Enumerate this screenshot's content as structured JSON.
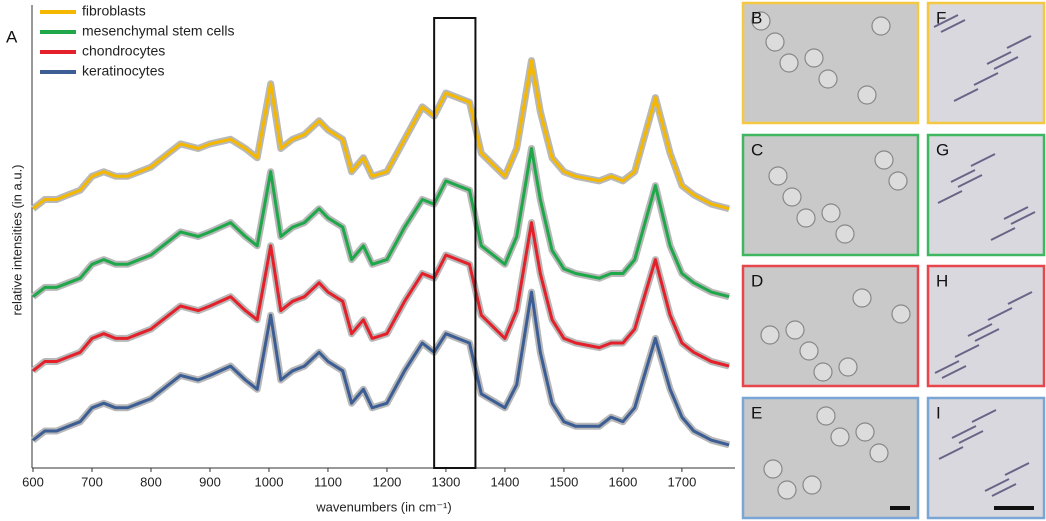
{
  "chart_data": {
    "type": "line",
    "figure_label": "A",
    "x_label": "wavenumbers (in cm⁻¹)",
    "y_label": "relative intensities (in a.u.)",
    "x": [
      600,
      620,
      640,
      660,
      680,
      700,
      720,
      740,
      760,
      780,
      800,
      820,
      850,
      880,
      900,
      935,
      960,
      980,
      1003,
      1020,
      1040,
      1060,
      1085,
      1100,
      1125,
      1140,
      1160,
      1175,
      1200,
      1230,
      1260,
      1280,
      1300,
      1320,
      1340,
      1360,
      1400,
      1420,
      1445,
      1460,
      1480,
      1500,
      1520,
      1560,
      1580,
      1600,
      1620,
      1655,
      1680,
      1700,
      1720,
      1750,
      1780
    ],
    "series": [
      {
        "name": "fibroblasts",
        "color": "#f5b800",
        "values": [
          56,
          58,
          58,
          59,
          60,
          63,
          64,
          63,
          63,
          64,
          65,
          67,
          70,
          69,
          70,
          71,
          69,
          67,
          83,
          69,
          71,
          72,
          75,
          73,
          71,
          64,
          67,
          63,
          64,
          71,
          78,
          76,
          81,
          80,
          79,
          68,
          63,
          69,
          88,
          77,
          67,
          64,
          63,
          62,
          63,
          62,
          64,
          80,
          68,
          61,
          59,
          57,
          56
        ]
      },
      {
        "name": "mesenchymal stem cells",
        "color": "#1ea84a",
        "values": [
          37,
          39,
          39,
          40,
          41,
          44,
          45,
          44,
          44,
          45,
          46,
          48,
          51,
          50,
          51,
          53,
          50,
          48,
          64,
          50,
          52,
          53,
          56,
          54,
          52,
          45,
          48,
          44,
          45,
          52,
          58,
          57,
          62,
          61,
          60,
          48,
          44,
          50,
          69,
          58,
          47,
          43,
          42,
          41,
          42,
          42,
          45,
          61,
          48,
          42,
          40,
          38,
          37
        ]
      },
      {
        "name": "chondrocytes",
        "color": "#e4202a",
        "values": [
          21,
          23,
          23,
          24,
          25,
          28,
          29,
          28,
          28,
          29,
          30,
          32,
          35,
          34,
          35,
          37,
          34,
          32,
          48,
          34,
          36,
          37,
          40,
          38,
          36,
          29,
          32,
          28,
          29,
          36,
          42,
          41,
          46,
          45,
          44,
          33,
          28,
          34,
          53,
          42,
          32,
          28,
          27,
          26,
          27,
          27,
          30,
          45,
          33,
          27,
          25,
          23,
          22
        ]
      },
      {
        "name": "keratinocytes",
        "color": "#3c5e95",
        "values": [
          6,
          8,
          8,
          9,
          10,
          13,
          14,
          13,
          13,
          14,
          15,
          17,
          20,
          19,
          20,
          22,
          19,
          17,
          33,
          19,
          21,
          22,
          25,
          23,
          21,
          14,
          17,
          13,
          14,
          21,
          27,
          25,
          29,
          28,
          27,
          16,
          13,
          18,
          38,
          25,
          14,
          10,
          9,
          9,
          11,
          10,
          13,
          28,
          17,
          11,
          8,
          6,
          5
        ]
      }
    ],
    "xlim": [
      600,
      1790
    ],
    "ylim": [
      0,
      100
    ],
    "xticks": [
      600,
      700,
      800,
      900,
      1000,
      1100,
      1200,
      1300,
      1400,
      1500,
      1600,
      1700
    ],
    "highlight_range": [
      1280,
      1350
    ],
    "legend": "top-left"
  },
  "panels": [
    {
      "label": "B",
      "color": "#f5c842"
    },
    {
      "label": "F",
      "color": "#f5c842"
    },
    {
      "label": "C",
      "color": "#3fb660"
    },
    {
      "label": "G",
      "color": "#3fb660"
    },
    {
      "label": "D",
      "color": "#e8454c"
    },
    {
      "label": "H",
      "color": "#e8454c"
    },
    {
      "label": "E",
      "color": "#7aa6d6"
    },
    {
      "label": "I",
      "color": "#7aa6d6"
    }
  ]
}
